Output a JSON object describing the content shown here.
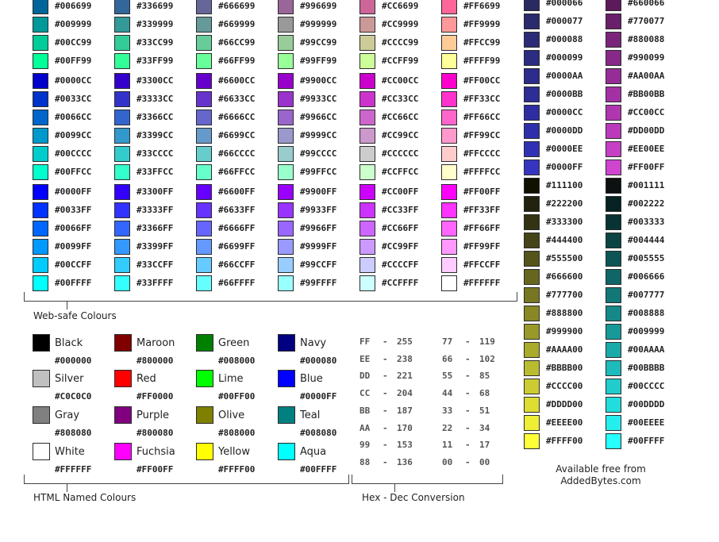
{
  "websafe_columns": [
    {
      "groups": [
        [
          "#006699",
          "#009999",
          "#00CC99",
          "#00FF99"
        ],
        [
          "#0000CC",
          "#0033CC",
          "#0066CC",
          "#0099CC",
          "#00CCCC",
          "#00FFCC"
        ],
        [
          "#0000FF",
          "#0033FF",
          "#0066FF",
          "#0099FF",
          "#00CCFF",
          "#00FFFF"
        ]
      ]
    },
    {
      "groups": [
        [
          "#336699",
          "#339999",
          "#33CC99",
          "#33FF99"
        ],
        [
          "#3300CC",
          "#3333CC",
          "#3366CC",
          "#3399CC",
          "#33CCCC",
          "#33FFCC"
        ],
        [
          "#3300FF",
          "#3333FF",
          "#3366FF",
          "#3399FF",
          "#33CCFF",
          "#33FFFF"
        ]
      ]
    },
    {
      "groups": [
        [
          "#666699",
          "#669999",
          "#66CC99",
          "#66FF99"
        ],
        [
          "#6600CC",
          "#6633CC",
          "#6666CC",
          "#6699CC",
          "#66CCCC",
          "#66FFCC"
        ],
        [
          "#6600FF",
          "#6633FF",
          "#6666FF",
          "#6699FF",
          "#66CCFF",
          "#66FFFF"
        ]
      ]
    },
    {
      "groups": [
        [
          "#996699",
          "#999999",
          "#99CC99",
          "#99FF99"
        ],
        [
          "#9900CC",
          "#9933CC",
          "#9966CC",
          "#9999CC",
          "#99CCCC",
          "#99FFCC"
        ],
        [
          "#9900FF",
          "#9933FF",
          "#9966FF",
          "#9999FF",
          "#99CCFF",
          "#99FFFF"
        ]
      ]
    },
    {
      "groups": [
        [
          "#CC6699",
          "#CC9999",
          "#CCCC99",
          "#CCFF99"
        ],
        [
          "#CC00CC",
          "#CC33CC",
          "#CC66CC",
          "#CC99CC",
          "#CCCCCC",
          "#CCFFCC"
        ],
        [
          "#CC00FF",
          "#CC33FF",
          "#CC66FF",
          "#CC99FF",
          "#CCCCFF",
          "#CCFFFF"
        ]
      ]
    },
    {
      "groups": [
        [
          "#FF6699",
          "#FF9999",
          "#FFCC99",
          "#FFFF99"
        ],
        [
          "#FF00CC",
          "#FF33CC",
          "#FF66CC",
          "#FF99CC",
          "#FFCCCC",
          "#FFFFCC"
        ],
        [
          "#FF00FF",
          "#FF33FF",
          "#FF66FF",
          "#FF99FF",
          "#FFCCFF",
          "#FFFFFF"
        ]
      ]
    }
  ],
  "websafe_caption": "Web-safe Colours",
  "named_colours": [
    {
      "name": "Black",
      "hex": "#000000"
    },
    {
      "name": "Maroon",
      "hex": "#800000"
    },
    {
      "name": "Green",
      "hex": "#008000"
    },
    {
      "name": "Navy",
      "hex": "#000080"
    },
    {
      "name": "Silver",
      "hex": "#C0C0C0"
    },
    {
      "name": "Red",
      "hex": "#FF0000"
    },
    {
      "name": "Lime",
      "hex": "#00FF00"
    },
    {
      "name": "Blue",
      "hex": "#0000FF"
    },
    {
      "name": "Gray",
      "hex": "#808080"
    },
    {
      "name": "Purple",
      "hex": "#800080"
    },
    {
      "name": "Olive",
      "hex": "#808000"
    },
    {
      "name": "Teal",
      "hex": "#008080"
    },
    {
      "name": "White",
      "hex": "#FFFFFF"
    },
    {
      "name": "Fuchsia",
      "hex": "#FF00FF"
    },
    {
      "name": "Yellow",
      "hex": "#FFFF00"
    },
    {
      "name": "Aqua",
      "hex": "#00FFFF"
    }
  ],
  "named_caption": "HTML Named Colours",
  "hex_dec": [
    [
      {
        "hex": "FF",
        "dec": "255"
      },
      {
        "hex": "EE",
        "dec": "238"
      },
      {
        "hex": "DD",
        "dec": "221"
      },
      {
        "hex": "CC",
        "dec": "204"
      },
      {
        "hex": "BB",
        "dec": "187"
      },
      {
        "hex": "AA",
        "dec": "170"
      },
      {
        "hex": "99",
        "dec": "153"
      },
      {
        "hex": "88",
        "dec": "136"
      }
    ],
    [
      {
        "hex": "77",
        "dec": "119"
      },
      {
        "hex": "66",
        "dec": "102"
      },
      {
        "hex": "55",
        "dec": "85"
      },
      {
        "hex": "44",
        "dec": "68"
      },
      {
        "hex": "33",
        "dec": "51"
      },
      {
        "hex": "22",
        "dec": "34"
      },
      {
        "hex": "11",
        "dec": "17"
      },
      {
        "hex": "00",
        "dec": "00"
      }
    ]
  ],
  "hex_dec_separator": "-",
  "hex_dec_caption": "Hex - Dec Conversion",
  "right_columns": [
    [
      "#000066",
      "#000077",
      "#000088",
      "#000099",
      "#0000AA",
      "#0000BB",
      "#0000CC",
      "#0000DD",
      "#0000EE",
      "#0000FF",
      "#111100",
      "#222200",
      "#333300",
      "#444400",
      "#555500",
      "#666600",
      "#777700",
      "#888800",
      "#999900",
      "#AAAA00",
      "#BBBB00",
      "#CCCC00",
      "#DDDD00",
      "#EEEE00",
      "#FFFF00"
    ],
    [
      "#660066",
      "#770077",
      "#880088",
      "#990099",
      "#AA00AA",
      "#BB00BB",
      "#CC00CC",
      "#DD00DD",
      "#EE00EE",
      "#FF00FF",
      "#001111",
      "#002222",
      "#003333",
      "#004444",
      "#005555",
      "#006666",
      "#007777",
      "#008888",
      "#009999",
      "#00AAAA",
      "#00BBBB",
      "#00CCCC",
      "#00DDDD",
      "#00EEEE",
      "#00FFFF"
    ]
  ],
  "right_swatch_colors": [
    [
      "#2a2a63",
      "#2a2a6e",
      "#2b2b78",
      "#2c2c82",
      "#2c2c8c",
      "#2d2d96",
      "#2e2ea2",
      "#2f2fac",
      "#3131b6",
      "#3535c0",
      "#111100",
      "#22220e",
      "#333314",
      "#444418",
      "#55551b",
      "#66661f",
      "#777722",
      "#888826",
      "#999929",
      "#aaaa2c",
      "#bbbb30",
      "#cccc32",
      "#dddd34",
      "#eeee36",
      "#ffff38"
    ],
    [
      "#5c1a5c",
      "#6a1f6a",
      "#7a247a",
      "#882888",
      "#962d96",
      "#a431a4",
      "#b036b0",
      "#bb3abb",
      "#c540c5",
      "#d045d0",
      "#0e1111",
      "#062222",
      "#083333",
      "#0b4444",
      "#0d5555",
      "#106666",
      "#127777",
      "#158888",
      "#179999",
      "#1aaaaa",
      "#1dbbbb",
      "#20cccc",
      "#22dddd",
      "#25eeee",
      "#27ffff"
    ]
  ],
  "free_line1": "Available free from",
  "free_line2": "AddedBytes.com"
}
